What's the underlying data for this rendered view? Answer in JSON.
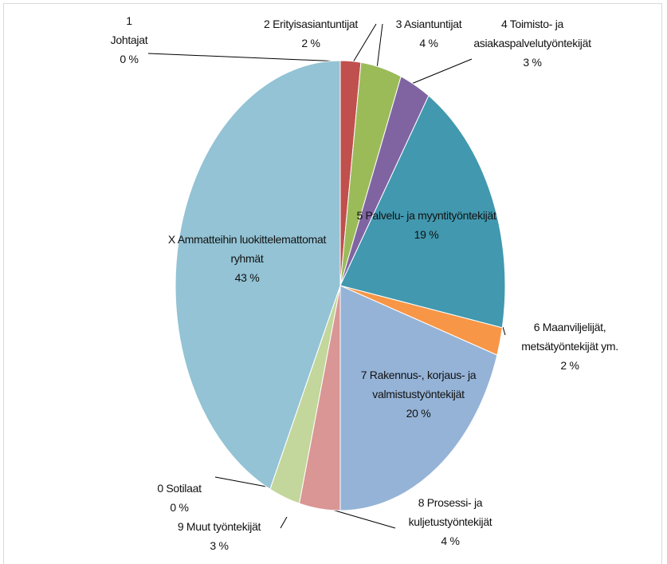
{
  "chart_data": {
    "type": "pie",
    "categories": [
      "1 Johtajat",
      "2 Erityisasiantuntijat",
      "3 Asiantuntijat",
      "4 Toimisto- ja asiakaspalvelutyöntekijät",
      "5 Palvelu- ja myyntityöntekijät",
      "6 Maanviljelijät, metsätyöntekijät ym.",
      "7 Rakennus-, korjaus- ja valmistustyöntekijät",
      "8 Prosessi- ja kuljetustyöntekijät",
      "9 Muut työntekijät",
      "0 Sotilaat",
      "X Ammatteihin luokittelemattomat ryhmät"
    ],
    "values": [
      0,
      2,
      4,
      3,
      19,
      2,
      20,
      4,
      3,
      0,
      43
    ],
    "value_labels": [
      "0 %",
      "2 %",
      "4 %",
      "3 %",
      "19 %",
      "2 %",
      "20 %",
      "4 %",
      "3 %",
      "0 %",
      "43 %"
    ],
    "colors": [
      "#4f81bd",
      "#c0504d",
      "#9bbb59",
      "#8064a2",
      "#4198af",
      "#f79646",
      "#95b3d7",
      "#d99694",
      "#c3d69b",
      "#b3a2c7",
      "#93c3d5"
    ]
  }
}
